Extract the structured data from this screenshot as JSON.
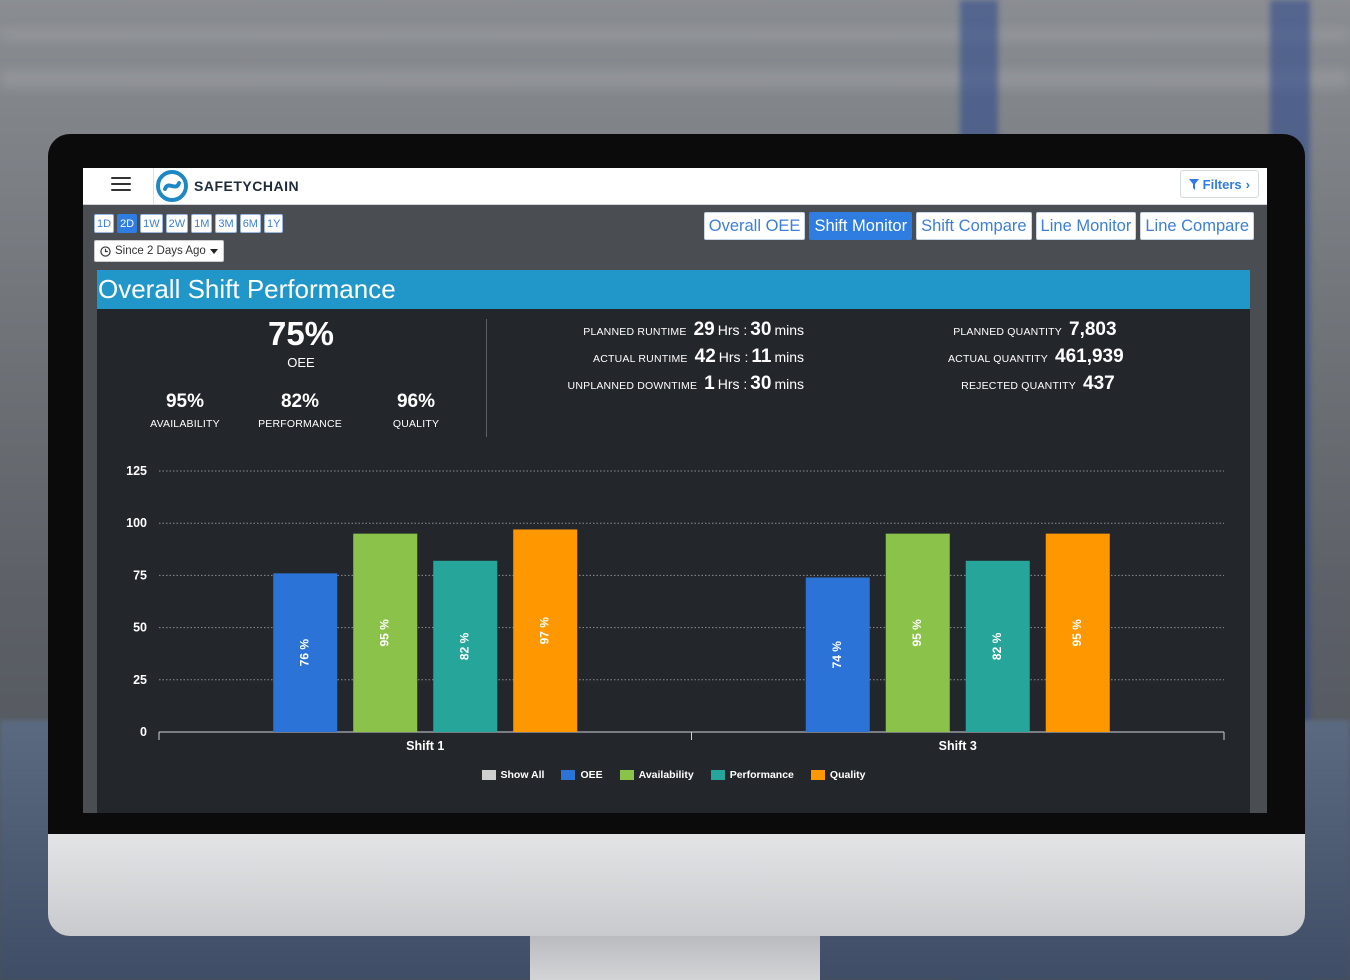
{
  "nav": {
    "brand_bold": "SAFETY",
    "brand_rest": "CHAIN",
    "filters_label": "Filters",
    "filters_chevron": "›"
  },
  "ranges": [
    {
      "label": "1D",
      "active": false
    },
    {
      "label": "2D",
      "active": true
    },
    {
      "label": "1W",
      "active": false
    },
    {
      "label": "2W",
      "active": false
    },
    {
      "label": "1M",
      "active": false
    },
    {
      "label": "3M",
      "active": false
    },
    {
      "label": "6M",
      "active": false
    },
    {
      "label": "1Y",
      "active": false
    }
  ],
  "since_label": "Since 2 Days Ago",
  "views": [
    {
      "label": "Overall OEE",
      "active": false
    },
    {
      "label": "Shift Monitor",
      "active": true
    },
    {
      "label": "Shift Compare",
      "active": false
    },
    {
      "label": "Line Monitor",
      "active": false
    },
    {
      "label": "Line Compare",
      "active": false
    }
  ],
  "panel": {
    "title": "Overall Shift Performance",
    "oee": {
      "value": "75%",
      "label": "OEE"
    },
    "availability": {
      "value": "95%",
      "label": "AVAILABILITY"
    },
    "performance": {
      "value": "82%",
      "label": "PERFORMANCE"
    },
    "quality": {
      "value": "96%",
      "label": "QUALITY"
    },
    "runtime": {
      "planned_label": "PLANNED RUNTIME",
      "planned_hrs": "29",
      "planned_mins": "30",
      "actual_label": "ACTUAL RUNTIME",
      "actual_hrs": "42",
      "actual_mins": "11",
      "downtime_label": "UNPLANNED DOWNTIME",
      "downtime_hrs": "1",
      "downtime_mins": "30",
      "hrs_unit": "Hrs :",
      "mins_unit": "mins"
    },
    "quantity": {
      "planned_label": "PLANNED QUANTITY",
      "planned": "7,803",
      "actual_label": "ACTUAL QUANTITY",
      "actual": "461,939",
      "rejected_label": "REJECTED QUANTITY",
      "rejected": "437"
    }
  },
  "chart_data": {
    "type": "bar",
    "categories": [
      "Shift 1",
      "Shift 3"
    ],
    "series": [
      {
        "name": "OEE",
        "color": "#2b73d6",
        "values": [
          76,
          74
        ]
      },
      {
        "name": "Availability",
        "color": "#8bc34a",
        "values": [
          95,
          95
        ]
      },
      {
        "name": "Performance",
        "color": "#26a69a",
        "values": [
          82,
          82
        ]
      },
      {
        "name": "Quality",
        "color": "#ff9800",
        "values": [
          97,
          95
        ]
      }
    ],
    "value_suffix": " %",
    "ylim": [
      0,
      125
    ],
    "yticks": [
      0,
      25,
      50,
      75,
      100,
      125
    ],
    "grid": true,
    "legend_position": "bottom",
    "legend": [
      {
        "name": "Show All",
        "color": "#cfcfcf"
      },
      {
        "name": "OEE",
        "color": "#2b73d6"
      },
      {
        "name": "Availability",
        "color": "#8bc34a"
      },
      {
        "name": "Performance",
        "color": "#26a69a"
      },
      {
        "name": "Quality",
        "color": "#ff9800"
      }
    ]
  }
}
